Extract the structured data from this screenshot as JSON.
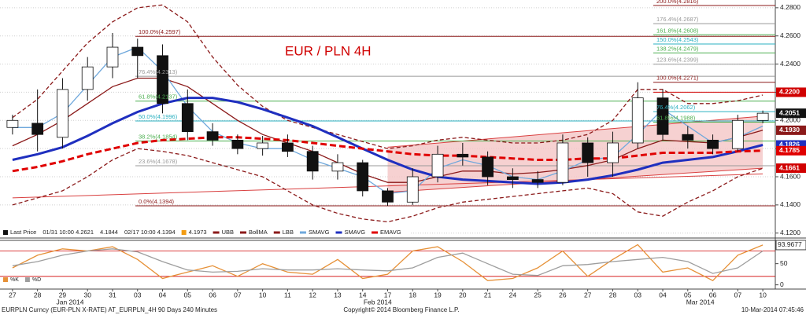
{
  "chart_data": [
    {
      "type": "candlestick",
      "title": "EUR / PLN 4H",
      "categories": [
        "27",
        "28",
        "29",
        "30",
        "31",
        "03",
        "04",
        "05",
        "06",
        "07",
        "10",
        "11",
        "12",
        "13",
        "14",
        "17",
        "18",
        "19",
        "20",
        "21",
        "24",
        "25",
        "26",
        "27",
        "28",
        "03",
        "04",
        "05",
        "06",
        "07",
        "10"
      ],
      "months": [
        "Jan 2014",
        "Feb 2014",
        "Mar 2014"
      ],
      "open": [
        4.195,
        4.198,
        4.188,
        4.222,
        4.238,
        4.252,
        4.246,
        4.212,
        4.192,
        4.186,
        4.18,
        4.184,
        4.178,
        4.164,
        4.17,
        4.15,
        4.142,
        4.16,
        4.176,
        4.174,
        4.16,
        4.158,
        4.156,
        4.184,
        4.17,
        4.184,
        4.216,
        4.19,
        4.186,
        4.18,
        4.2
      ],
      "high": [
        4.204,
        4.222,
        4.23,
        4.245,
        4.2621,
        4.258,
        4.254,
        4.222,
        4.198,
        4.19,
        4.189,
        4.19,
        4.182,
        4.176,
        4.172,
        4.152,
        4.166,
        4.182,
        4.184,
        4.178,
        4.166,
        4.164,
        4.19,
        4.188,
        4.192,
        4.2271,
        4.222,
        4.196,
        4.19,
        4.204,
        4.207
      ],
      "low": [
        4.19,
        4.178,
        4.18,
        4.214,
        4.23,
        4.23,
        4.205,
        4.186,
        4.182,
        4.176,
        4.175,
        4.174,
        4.158,
        4.158,
        4.146,
        4.1394,
        4.14,
        4.156,
        4.168,
        4.154,
        4.152,
        4.152,
        4.154,
        4.16,
        4.16,
        4.18,
        4.186,
        4.18,
        4.176,
        4.178,
        4.198
      ],
      "close": [
        4.2,
        4.19,
        4.222,
        4.238,
        4.252,
        4.246,
        4.212,
        4.192,
        4.186,
        4.18,
        4.184,
        4.178,
        4.164,
        4.17,
        4.15,
        4.142,
        4.16,
        4.176,
        4.174,
        4.16,
        4.158,
        4.156,
        4.184,
        4.17,
        4.184,
        4.216,
        4.19,
        4.186,
        4.18,
        4.2,
        4.2051
      ],
      "candle_colors": {
        "up": "#ffffff",
        "down": "#111111"
      },
      "series": [
        {
          "name": "UBB",
          "color": "#8b1a1a",
          "dashed": true,
          "values": [
            4.202,
            4.215,
            4.235,
            4.255,
            4.27,
            4.28,
            4.282,
            4.27,
            4.245,
            4.225,
            4.21,
            4.2,
            4.195,
            4.19,
            4.185,
            4.18,
            4.182,
            4.186,
            4.188,
            4.186,
            4.184,
            4.184,
            4.186,
            4.19,
            4.2,
            4.222,
            4.222,
            4.212,
            4.212,
            4.214,
            4.218
          ]
        },
        {
          "name": "BollMA",
          "color": "#8b1a1a",
          "values": [
            4.182,
            4.19,
            4.2,
            4.212,
            4.224,
            4.23,
            4.23,
            4.224,
            4.212,
            4.2,
            4.19,
            4.184,
            4.178,
            4.17,
            4.162,
            4.156,
            4.156,
            4.16,
            4.164,
            4.164,
            4.162,
            4.163,
            4.165,
            4.168,
            4.172,
            4.18,
            4.186,
            4.185,
            4.184,
            4.188,
            4.193
          ]
        },
        {
          "name": "LBB",
          "color": "#8b1a1a",
          "dashed": true,
          "values": [
            4.14,
            4.145,
            4.15,
            4.16,
            4.172,
            4.18,
            4.178,
            4.175,
            4.17,
            4.165,
            4.16,
            4.15,
            4.14,
            4.134,
            4.13,
            4.128,
            4.132,
            4.138,
            4.142,
            4.144,
            4.146,
            4.148,
            4.15,
            4.152,
            4.148,
            4.135,
            4.132,
            4.142,
            4.15,
            4.16,
            4.166
          ]
        },
        {
          "name": "SMAVG",
          "color": "#6fa8dc",
          "values": [
            4.195,
            4.195,
            4.205,
            4.225,
            4.245,
            4.252,
            4.235,
            4.21,
            4.192,
            4.184,
            4.18,
            4.18,
            4.172,
            4.166,
            4.16,
            4.148,
            4.15,
            4.166,
            4.172,
            4.168,
            4.16,
            4.158,
            4.164,
            4.172,
            4.174,
            4.19,
            4.208,
            4.196,
            4.184,
            4.188,
            4.196
          ]
        },
        {
          "name": "SMAVG",
          "color": "#1f2fbf",
          "thick": true,
          "values": [
            4.172,
            4.176,
            4.181,
            4.189,
            4.198,
            4.206,
            4.212,
            4.216,
            4.216,
            4.213,
            4.208,
            4.202,
            4.196,
            4.188,
            4.18,
            4.172,
            4.165,
            4.16,
            4.158,
            4.157,
            4.156,
            4.155,
            4.156,
            4.158,
            4.161,
            4.165,
            4.17,
            4.172,
            4.174,
            4.178,
            4.1826
          ]
        },
        {
          "name": "EMAVG",
          "color": "#e00000",
          "dashed": true,
          "thick": true,
          "values": [
            4.164,
            4.167,
            4.171,
            4.176,
            4.18,
            4.184,
            4.186,
            4.187,
            4.188,
            4.188,
            4.187,
            4.186,
            4.184,
            4.182,
            4.18,
            4.178,
            4.176,
            4.175,
            4.175,
            4.174,
            4.173,
            4.172,
            4.172,
            4.173,
            4.173,
            4.175,
            4.177,
            4.177,
            4.177,
            4.178,
            4.1785
          ]
        }
      ],
      "ylim": [
        4.1165,
        4.2855
      ],
      "yticks": [
        {
          "value": 4.12,
          "label": "4.1200"
        },
        {
          "value": 4.14,
          "label": "4.1400"
        },
        {
          "value": 4.16,
          "label": "4.1600"
        },
        {
          "value": 4.18,
          "label": "4.1800"
        },
        {
          "value": 4.2,
          "label": "4.2000"
        },
        {
          "value": 4.22,
          "label": "4.2200"
        },
        {
          "value": 4.24,
          "label": "4.2400"
        },
        {
          "value": 4.26,
          "label": "4.2600"
        },
        {
          "value": 4.28,
          "label": "4.2800"
        }
      ],
      "grid": true,
      "fib_left": [
        {
          "value": 4.2597,
          "label": "100.0%(4.2597)",
          "color": "#8b1a1a"
        },
        {
          "value": 4.2313,
          "label": "76.4%(4.2313)",
          "color": "#999999"
        },
        {
          "value": 4.2137,
          "label": "61.8%(4.2137)",
          "color": "#4caf50"
        },
        {
          "value": 4.1996,
          "label": "50.0%(4.1996)",
          "color": "#2bb0c0"
        },
        {
          "value": 4.1854,
          "label": "38.2%(4.1854)",
          "color": "#4caf50"
        },
        {
          "value": 4.1678,
          "label": "23.6%(4.1678)",
          "color": "#999999"
        },
        {
          "value": 4.1394,
          "label": "0.0%(4.1394)",
          "color": "#8b1a1a"
        }
      ],
      "fib_right": [
        {
          "value": 4.2816,
          "label": "200.0%(4.2816)",
          "color": "#8b1a1a"
        },
        {
          "value": 4.2687,
          "label": "176.4%(4.2687)",
          "color": "#999999"
        },
        {
          "value": 4.2608,
          "label": "161.8%(4.2608)",
          "color": "#4caf50"
        },
        {
          "value": 4.2543,
          "label": "150.0%(4.2543)",
          "color": "#2bb0c0"
        },
        {
          "value": 4.2479,
          "label": "138.2%(4.2479)",
          "color": "#4caf50"
        },
        {
          "value": 4.2399,
          "label": "123.6%(4.2399)",
          "color": "#999999"
        },
        {
          "value": 4.2271,
          "label": "100.0%(4.2271)",
          "color": "#8b1a1a"
        },
        {
          "value": 4.2062,
          "label": "76.4%(4.2062)",
          "color": "#2bb0c0"
        },
        {
          "value": 4.1988,
          "label": "61.8%(4.1988)",
          "color": "#4caf50"
        }
      ],
      "trendlines": [
        {
          "x": [
            15,
            30
          ],
          "y": [
            4.181,
            4.203
          ],
          "color": "#d94040"
        },
        {
          "x": [
            15,
            30
          ],
          "y": [
            4.149,
            4.1661
          ],
          "color": "#d94040"
        },
        {
          "x": [
            0,
            30
          ],
          "y": [
            4.145,
            4.162
          ],
          "color": "#d94040"
        }
      ],
      "channel_color": "#f4c6c6",
      "price_labels": [
        {
          "value": 4.22,
          "label": "4.2200",
          "color": "#d00000",
          "line": true
        },
        {
          "value": 4.2051,
          "label": "4.2051",
          "color": "#111111"
        },
        {
          "value": 4.193,
          "label": "4.1930",
          "color": "#8b1a1a"
        },
        {
          "value": 4.1826,
          "label": "4.1826",
          "color": "#1f2fbf"
        },
        {
          "value": 4.1785,
          "label": "4.1785",
          "color": "#e00000"
        },
        {
          "value": 4.1661,
          "label": "4.1661",
          "color": "#d00000"
        }
      ],
      "legend_notes": [
        {
          "label": "Last Price",
          "color": "#111111"
        },
        {
          "label": "01/31 10:00 4.2621"
        },
        {
          "label": "4.1844"
        },
        {
          "label": "02/17 10:00 4.1394"
        },
        {
          "label": "4.1973",
          "color": "#f39c12"
        }
      ]
    },
    {
      "type": "line",
      "series": [
        {
          "name": "%K",
          "color": "#e69138",
          "values": [
            40,
            70,
            85,
            80,
            90,
            60,
            15,
            30,
            45,
            20,
            50,
            30,
            25,
            60,
            15,
            25,
            80,
            90,
            55,
            10,
            15,
            40,
            80,
            20,
            60,
            95,
            30,
            40,
            10,
            70,
            93.9677
          ]
        },
        {
          "name": "%D",
          "color": "#9e9e9e",
          "values": [
            45,
            55,
            70,
            80,
            85,
            78,
            55,
            35,
            30,
            32,
            38,
            35,
            35,
            38,
            35,
            33,
            40,
            65,
            75,
            50,
            25,
            22,
            45,
            48,
            55,
            60,
            65,
            55,
            27,
            40,
            80
          ]
        }
      ],
      "ylim": [
        -10,
        105
      ],
      "yticks": [
        0,
        50
      ],
      "levels": [
        20,
        80
      ],
      "level_color": "#d00000"
    }
  ],
  "footer": {
    "left": "EURPLN Curncy (EUR-PLN X-RATE) AT_EURPLN_4H 90 Days 240 Minutes",
    "center": "Copyright© 2014 Bloomberg Finance L.P.",
    "right": "10-Mar-2014 07:45:46"
  }
}
